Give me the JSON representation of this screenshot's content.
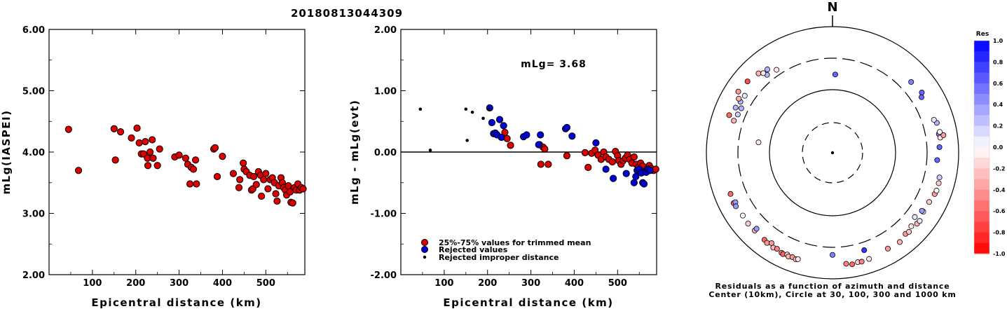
{
  "title": "20180813044309",
  "chart_data": [
    {
      "type": "scatter",
      "id": "left",
      "xlabel": "Epicentral distance (km)",
      "ylabel": "mLg(IASPEI)",
      "xlim": [
        0,
        590
      ],
      "ylim": [
        2.0,
        6.0
      ],
      "xticks": [
        100,
        200,
        300,
        400,
        500
      ],
      "xtick_labels": [
        "100",
        "200",
        "300",
        "400",
        "500"
      ],
      "yticks": [
        2.0,
        3.0,
        4.0,
        5.0,
        6.0
      ],
      "ytick_labels": [
        "2.00",
        "3.00",
        "4.00",
        "5.00",
        "6.00"
      ],
      "series": [
        {
          "color": "#dd0000",
          "points": [
            [
              45,
              4.37
            ],
            [
              68,
              3.7
            ],
            [
              150,
              4.38
            ],
            [
              153,
              3.87
            ],
            [
              165,
              4.33
            ],
            [
              190,
              4.23
            ],
            [
              203,
              4.39
            ],
            [
              208,
              4.15
            ],
            [
              213,
              3.97
            ],
            [
              218,
              3.97
            ],
            [
              222,
              4.17
            ],
            [
              227,
              3.9
            ],
            [
              228,
              3.78
            ],
            [
              233,
              4.0
            ],
            [
              238,
              4.2
            ],
            [
              240,
              3.9
            ],
            [
              250,
              3.78
            ],
            [
              255,
              4.05
            ],
            [
              290,
              3.92
            ],
            [
              300,
              3.95
            ],
            [
              315,
              3.9
            ],
            [
              320,
              3.8
            ],
            [
              325,
              3.48
            ],
            [
              328,
              3.75
            ],
            [
              333,
              3.72
            ],
            [
              338,
              3.87
            ],
            [
              340,
              3.48
            ],
            [
              380,
              4.05
            ],
            [
              383,
              4.07
            ],
            [
              388,
              3.6
            ],
            [
              400,
              3.93
            ],
            [
              425,
              3.65
            ],
            [
              438,
              3.42
            ],
            [
              440,
              3.55
            ],
            [
              448,
              3.82
            ],
            [
              450,
              3.72
            ],
            [
              455,
              3.68
            ],
            [
              463,
              3.62
            ],
            [
              467,
              3.38
            ],
            [
              470,
              3.4
            ],
            [
              472,
              3.6
            ],
            [
              478,
              3.47
            ],
            [
              483,
              3.68
            ],
            [
              488,
              3.62
            ],
            [
              490,
              3.28
            ],
            [
              495,
              3.55
            ],
            [
              500,
              3.65
            ],
            [
              505,
              3.4
            ],
            [
              510,
              3.55
            ],
            [
              515,
              3.58
            ],
            [
              520,
              3.5
            ],
            [
              523,
              3.32
            ],
            [
              526,
              3.2
            ],
            [
              530,
              3.45
            ],
            [
              535,
              3.58
            ],
            [
              538,
              3.5
            ],
            [
              541,
              3.42
            ],
            [
              545,
              3.38
            ],
            [
              548,
              3.3
            ],
            [
              552,
              3.45
            ],
            [
              556,
              3.35
            ],
            [
              558,
              3.18
            ],
            [
              562,
              3.17
            ],
            [
              566,
              3.42
            ],
            [
              570,
              3.38
            ],
            [
              574,
              3.48
            ],
            [
              578,
              3.38
            ],
            [
              582,
              3.42
            ],
            [
              586,
              3.4
            ]
          ]
        }
      ]
    },
    {
      "type": "scatter",
      "id": "middle",
      "xlabel": "Epicentral distance (km)",
      "ylabel": "mLg - mLg(evt)",
      "annotation": "mLg= 3.68",
      "xlim": [
        0,
        590
      ],
      "ylim": [
        -2.0,
        2.0
      ],
      "xticks": [
        100,
        200,
        300,
        400,
        500
      ],
      "xtick_labels": [
        "100",
        "200",
        "300",
        "400",
        "500"
      ],
      "yticks": [
        -2.0,
        -1.0,
        0.0,
        1.0,
        2.0
      ],
      "ytick_labels": [
        "-2.00",
        "-1.00",
        "0.00",
        "1.00",
        "2.00"
      ],
      "reference_line": 0.0,
      "legend": [
        {
          "label": "25%-75% values for trimmed mean",
          "color": "#dd0000",
          "marker": "circle"
        },
        {
          "label": "Rejected values",
          "color": "#0000dd",
          "marker": "circle"
        },
        {
          "label": "Rejected improper distance",
          "color": "#000000",
          "marker": "dot"
        }
      ],
      "series": [
        {
          "legend_index": 0,
          "color": "#dd0000",
          "points": [
            [
              240,
              0.32
            ],
            [
              245,
              0.22
            ],
            [
              253,
              0.11
            ],
            [
              320,
              0.12
            ],
            [
              323,
              -0.2
            ],
            [
              328,
              0.08
            ],
            [
              332,
              0.05
            ],
            [
              340,
              -0.2
            ],
            [
              383,
              -0.06
            ],
            [
              425,
              -0.01
            ],
            [
              432,
              -0.25
            ],
            [
              440,
              -0.02
            ],
            [
              448,
              0.03
            ],
            [
              455,
              -0.05
            ],
            [
              462,
              -0.12
            ],
            [
              468,
              0.0
            ],
            [
              473,
              -0.08
            ],
            [
              480,
              -0.12
            ],
            [
              488,
              -0.16
            ],
            [
              495,
              0.01
            ],
            [
              500,
              -0.06
            ],
            [
              503,
              -0.14
            ],
            [
              508,
              -0.2
            ],
            [
              513,
              -0.14
            ],
            [
              518,
              -0.1
            ],
            [
              523,
              -0.05
            ],
            [
              528,
              -0.12
            ],
            [
              533,
              -0.18
            ],
            [
              538,
              -0.08
            ],
            [
              543,
              -0.2
            ],
            [
              548,
              -0.25
            ],
            [
              553,
              -0.18
            ],
            [
              558,
              -0.23
            ],
            [
              563,
              -0.32
            ],
            [
              568,
              -0.28
            ],
            [
              573,
              -0.22
            ],
            [
              578,
              -0.27
            ],
            [
              583,
              -0.3
            ],
            [
              588,
              -0.28
            ]
          ]
        },
        {
          "legend_index": 1,
          "color": "#0000dd",
          "points": [
            [
              205,
              0.72
            ],
            [
              210,
              0.48
            ],
            [
              214,
              0.3
            ],
            [
              218,
              0.31
            ],
            [
              222,
              0.28
            ],
            [
              228,
              0.53
            ],
            [
              232,
              0.24
            ],
            [
              237,
              0.43
            ],
            [
              283,
              0.25
            ],
            [
              290,
              0.28
            ],
            [
              318,
              0.12
            ],
            [
              322,
              0.28
            ],
            [
              380,
              0.38
            ],
            [
              383,
              0.4
            ],
            [
              395,
              0.26
            ],
            [
              450,
              0.15
            ],
            [
              473,
              -0.28
            ],
            [
              490,
              -0.43
            ],
            [
              520,
              -0.35
            ],
            [
              538,
              -0.5
            ],
            [
              542,
              -0.4
            ],
            [
              545,
              -0.3
            ],
            [
              550,
              -0.28
            ],
            [
              555,
              -0.34
            ],
            [
              558,
              -0.5
            ],
            [
              561,
              -0.52
            ],
            [
              566,
              -0.33
            ],
            [
              570,
              -0.28
            ],
            [
              575,
              -0.3
            ]
          ]
        },
        {
          "legend_index": 2,
          "color": "#000000",
          "points": [
            [
              45,
              0.7
            ],
            [
              68,
              0.03
            ],
            [
              150,
              0.7
            ],
            [
              153,
              0.19
            ],
            [
              165,
              0.65
            ],
            [
              190,
              0.55
            ],
            [
              203,
              0.7
            ]
          ]
        }
      ]
    },
    {
      "type": "scatter",
      "id": "polar",
      "subtype": "polar",
      "north_label": "N",
      "caption_line1": "Residuals as a function of azimuth and distance",
      "caption_line2": "Center (10km), Circle at 30, 100, 300 and 1000 km",
      "rings_km": [
        30,
        100,
        300,
        1000
      ],
      "dashed_rings_km": [
        30,
        300
      ],
      "colorbar": {
        "title": "Res",
        "range": [
          -1.0,
          1.0
        ],
        "labels": [
          "1.0",
          "0.8",
          "0.6",
          "0.4",
          "0.2",
          "0.0",
          "-0.2",
          "-0.4",
          "-0.6",
          "-0.8",
          "-1.0"
        ]
      },
      "points": [
        [
          2,
          170,
          0.6
        ],
        [
          278,
          150,
          -0.1
        ],
        [
          288,
          425,
          -0.3
        ],
        [
          292,
          400,
          0.2
        ],
        [
          296,
          390,
          0.3
        ],
        [
          299,
          450,
          0.3
        ],
        [
          303,
          440,
          0.1
        ],
        [
          310,
          560,
          -0.7
        ],
        [
          317,
          510,
          -0.3
        ],
        [
          320,
          395,
          0.3
        ],
        [
          326,
          370,
          -0.1
        ],
        [
          319,
          455,
          -0.1
        ],
        [
          322,
          460,
          0.3
        ],
        [
          303,
          590,
          -0.4
        ],
        [
          300,
          505,
          -0.3
        ],
        [
          295,
          480,
          0.3
        ],
        [
          290,
          540,
          -0.6
        ],
        [
          248,
          540,
          -0.6
        ],
        [
          243,
          560,
          -0.6
        ],
        [
          243,
          520,
          0.4
        ],
        [
          241,
          550,
          0.4
        ],
        [
          235,
          530,
          0.0
        ],
        [
          230,
          545,
          -0.2
        ],
        [
          225,
          540,
          -0.3
        ],
        [
          225,
          490,
          0.4
        ],
        [
          218,
          550,
          -0.6
        ],
        [
          216,
          570,
          -0.4
        ],
        [
          214,
          520,
          -0.4
        ],
        [
          212,
          580,
          -0.3
        ],
        [
          210,
          560,
          -0.5
        ],
        [
          207,
          590,
          -0.5
        ],
        [
          206,
          600,
          -0.6
        ],
        [
          204,
          570,
          -0.2
        ],
        [
          203,
          600,
          -0.3
        ],
        [
          201,
          580,
          -0.4
        ],
        [
          199,
          598,
          -0.2
        ],
        [
          198,
          580,
          -0.1
        ],
        [
          180,
          400,
          0.5
        ],
        [
          162,
          405,
          0.8
        ],
        [
          173,
          580,
          -0.5
        ],
        [
          170,
          612,
          -0.6
        ],
        [
          167,
          590,
          -0.2
        ],
        [
          165,
          600,
          -0.5
        ],
        [
          161,
          590,
          -0.1
        ],
        [
          150,
          555,
          -0.4
        ],
        [
          143,
          578,
          -0.3
        ],
        [
          138,
          523,
          -0.4
        ],
        [
          136,
          540,
          -0.2
        ],
        [
          133,
          495,
          -0.1
        ],
        [
          130,
          547,
          -0.3
        ],
        [
          128,
          555,
          0.1
        ],
        [
          128,
          437,
          0.1
        ],
        [
          123,
          505,
          0.0
        ],
        [
          123,
          475,
          0.4
        ],
        [
          117,
          510,
          -0.2
        ],
        [
          112,
          545,
          -0.4
        ],
        [
          110,
          555,
          0.0
        ],
        [
          106,
          550,
          -0.2
        ],
        [
          94,
          445,
          0.6
        ],
        [
          87,
          483,
          0.6
        ],
        [
          80,
          500,
          0.5
        ],
        [
          82,
          515,
          -0.1
        ],
        [
          79,
          525,
          0.0
        ],
        [
          74,
          510,
          0.3
        ],
        [
          72,
          475,
          0.1
        ],
        [
          58,
          445,
          0.6
        ],
        [
          56,
          495,
          0.6
        ],
        [
          48,
          460,
          0.5
        ],
        [
          81,
          590,
          -0.4
        ],
        [
          103,
          535,
          0.2
        ]
      ]
    }
  ]
}
